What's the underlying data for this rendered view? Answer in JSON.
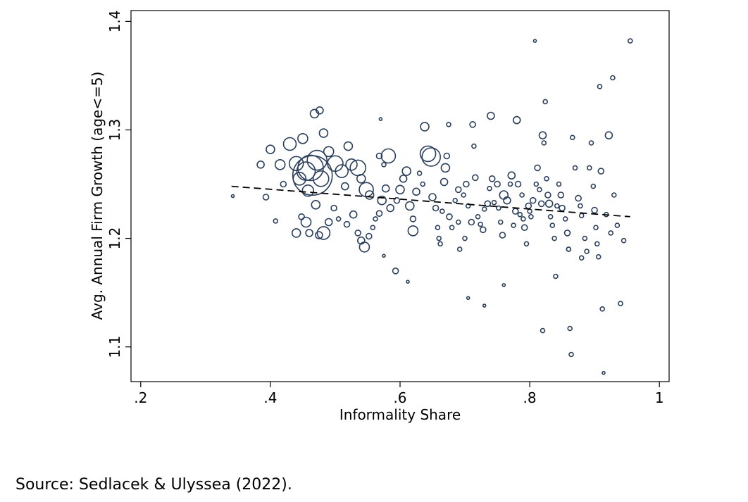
{
  "chart_data": {
    "type": "scatter",
    "title": "",
    "xlabel": "Informality Share",
    "ylabel": "Avg. Annual Firm Growth (age<=5)",
    "xlim": [
      0.185,
      1.015
    ],
    "ylim": [
      1.068,
      1.41
    ],
    "x_ticks": [
      0.2,
      0.4,
      0.6,
      0.8,
      1.0
    ],
    "x_tick_labels": [
      ".2",
      ".4",
      ".6",
      ".8",
      "1"
    ],
    "y_ticks": [
      1.1,
      1.2,
      1.3,
      1.4
    ],
    "y_tick_labels": [
      "1.1",
      "1.2",
      "1.3",
      "1.4"
    ],
    "grid": false,
    "legend": "none",
    "marker": "hollow-circle",
    "marker_color": "#2b3f5c",
    "fit_line": {
      "style": "dashed",
      "color": "#000000",
      "x": [
        0.34,
        0.955
      ],
      "y": [
        1.248,
        1.22
      ]
    },
    "points": [
      [
        0.342,
        1.239,
        2
      ],
      [
        0.385,
        1.268,
        5
      ],
      [
        0.4,
        1.282,
        6
      ],
      [
        0.393,
        1.238,
        4
      ],
      [
        0.415,
        1.268,
        7
      ],
      [
        0.42,
        1.25,
        4
      ],
      [
        0.408,
        1.216,
        3
      ],
      [
        0.43,
        1.287,
        9
      ],
      [
        0.44,
        1.269,
        10
      ],
      [
        0.445,
        1.255,
        9
      ],
      [
        0.455,
        1.262,
        13
      ],
      [
        0.462,
        1.265,
        18
      ],
      [
        0.465,
        1.258,
        28
      ],
      [
        0.472,
        1.272,
        14
      ],
      [
        0.478,
        1.255,
        11
      ],
      [
        0.458,
        1.244,
        8
      ],
      [
        0.47,
        1.231,
        6
      ],
      [
        0.448,
        1.22,
        4
      ],
      [
        0.44,
        1.205,
        6
      ],
      [
        0.455,
        1.215,
        7
      ],
      [
        0.46,
        1.205,
        5
      ],
      [
        0.475,
        1.203,
        5
      ],
      [
        0.482,
        1.205,
        9
      ],
      [
        0.468,
        1.315,
        6
      ],
      [
        0.476,
        1.318,
        5
      ],
      [
        0.482,
        1.297,
        6
      ],
      [
        0.45,
        1.292,
        7
      ],
      [
        0.49,
        1.28,
        7
      ],
      [
        0.5,
        1.269,
        11
      ],
      [
        0.51,
        1.262,
        9
      ],
      [
        0.52,
        1.285,
        6
      ],
      [
        0.525,
        1.268,
        8
      ],
      [
        0.535,
        1.265,
        11
      ],
      [
        0.54,
        1.255,
        6
      ],
      [
        0.548,
        1.245,
        10
      ],
      [
        0.553,
        1.24,
        6
      ],
      [
        0.515,
        1.248,
        5
      ],
      [
        0.498,
        1.228,
        4
      ],
      [
        0.505,
        1.218,
        3
      ],
      [
        0.49,
        1.215,
        5
      ],
      [
        0.518,
        1.213,
        4
      ],
      [
        0.528,
        1.222,
        5
      ],
      [
        0.535,
        1.205,
        4
      ],
      [
        0.54,
        1.198,
        5
      ],
      [
        0.545,
        1.192,
        7
      ],
      [
        0.552,
        1.202,
        4
      ],
      [
        0.558,
        1.21,
        3
      ],
      [
        0.562,
        1.218,
        3
      ],
      [
        0.568,
        1.223,
        4
      ],
      [
        0.572,
        1.235,
        6
      ],
      [
        0.578,
        1.246,
        5
      ],
      [
        0.582,
        1.276,
        10
      ],
      [
        0.568,
        1.276,
        4
      ],
      [
        0.575,
        1.268,
        3
      ],
      [
        0.57,
        1.31,
        2
      ],
      [
        0.585,
        1.228,
        5
      ],
      [
        0.595,
        1.235,
        4
      ],
      [
        0.6,
        1.245,
        6
      ],
      [
        0.605,
        1.255,
        5
      ],
      [
        0.61,
        1.262,
        6
      ],
      [
        0.615,
        1.23,
        6
      ],
      [
        0.62,
        1.218,
        4
      ],
      [
        0.62,
        1.207,
        7
      ],
      [
        0.625,
        1.243,
        5
      ],
      [
        0.63,
        1.26,
        3
      ],
      [
        0.635,
        1.25,
        3
      ],
      [
        0.638,
        1.303,
        6
      ],
      [
        0.643,
        1.278,
        11
      ],
      [
        0.648,
        1.275,
        13
      ],
      [
        0.65,
        1.238,
        5
      ],
      [
        0.655,
        1.228,
        4
      ],
      [
        0.658,
        1.21,
        3
      ],
      [
        0.66,
        1.2,
        3
      ],
      [
        0.662,
        1.195,
        3
      ],
      [
        0.665,
        1.225,
        3
      ],
      [
        0.668,
        1.252,
        5
      ],
      [
        0.67,
        1.265,
        6
      ],
      [
        0.672,
        1.276,
        4
      ],
      [
        0.675,
        1.305,
        3
      ],
      [
        0.676,
        1.22,
        4
      ],
      [
        0.68,
        1.21,
        3
      ],
      [
        0.685,
        1.235,
        3
      ],
      [
        0.69,
        1.245,
        4
      ],
      [
        0.692,
        1.19,
        3
      ],
      [
        0.593,
        1.17,
        4
      ],
      [
        0.575,
        1.184,
        2
      ],
      [
        0.612,
        1.16,
        2
      ],
      [
        0.698,
        1.24,
        3
      ],
      [
        0.702,
        1.25,
        4
      ],
      [
        0.705,
        1.23,
        3
      ],
      [
        0.71,
        1.215,
        4
      ],
      [
        0.712,
        1.305,
        4
      ],
      [
        0.714,
        1.285,
        3
      ],
      [
        0.716,
        1.256,
        4
      ],
      [
        0.72,
        1.22,
        3
      ],
      [
        0.724,
        1.213,
        3
      ],
      [
        0.728,
        1.208,
        4
      ],
      [
        0.73,
        1.227,
        3
      ],
      [
        0.735,
        1.232,
        4
      ],
      [
        0.738,
        1.246,
        3
      ],
      [
        0.74,
        1.313,
        5
      ],
      [
        0.742,
        1.255,
        4
      ],
      [
        0.745,
        1.233,
        3
      ],
      [
        0.75,
        1.25,
        4
      ],
      [
        0.752,
        1.228,
        3
      ],
      [
        0.755,
        1.215,
        3
      ],
      [
        0.758,
        1.203,
        4
      ],
      [
        0.76,
        1.24,
        6
      ],
      [
        0.765,
        1.235,
        5
      ],
      [
        0.77,
        1.25,
        3
      ],
      [
        0.772,
        1.258,
        5
      ],
      [
        0.775,
        1.212,
        3
      ],
      [
        0.778,
        1.225,
        4
      ],
      [
        0.78,
        1.309,
        5
      ],
      [
        0.782,
        1.25,
        4
      ],
      [
        0.785,
        1.222,
        3
      ],
      [
        0.788,
        1.24,
        3
      ],
      [
        0.79,
        1.218,
        3
      ],
      [
        0.792,
        1.21,
        4
      ],
      [
        0.795,
        1.195,
        3
      ],
      [
        0.798,
        1.23,
        4
      ],
      [
        0.8,
        1.225,
        3
      ],
      [
        0.802,
        1.22,
        3
      ],
      [
        0.805,
        1.235,
        4
      ],
      [
        0.808,
        1.382,
        2
      ],
      [
        0.81,
        1.25,
        3
      ],
      [
        0.812,
        1.265,
        4
      ],
      [
        0.815,
        1.245,
        3
      ],
      [
        0.818,
        1.232,
        4
      ],
      [
        0.82,
        1.295,
        5
      ],
      [
        0.822,
        1.288,
        3
      ],
      [
        0.824,
        1.326,
        3
      ],
      [
        0.826,
        1.255,
        3
      ],
      [
        0.828,
        1.24,
        4
      ],
      [
        0.83,
        1.232,
        5
      ],
      [
        0.832,
        1.22,
        3
      ],
      [
        0.835,
        1.212,
        3
      ],
      [
        0.838,
        1.2,
        3
      ],
      [
        0.84,
        1.165,
        3
      ],
      [
        0.842,
        1.23,
        3
      ],
      [
        0.845,
        1.25,
        3
      ],
      [
        0.848,
        1.24,
        4
      ],
      [
        0.85,
        1.228,
        4
      ],
      [
        0.855,
        1.218,
        3
      ],
      [
        0.858,
        1.205,
        4
      ],
      [
        0.86,
        1.19,
        3
      ],
      [
        0.862,
        1.117,
        3
      ],
      [
        0.864,
        1.093,
        3
      ],
      [
        0.866,
        1.293,
        3
      ],
      [
        0.87,
        1.265,
        3
      ],
      [
        0.875,
        1.237,
        4
      ],
      [
        0.878,
        1.23,
        3
      ],
      [
        0.88,
        1.221,
        3
      ],
      [
        0.885,
        1.2,
        3
      ],
      [
        0.888,
        1.188,
        3
      ],
      [
        0.892,
        1.265,
        3
      ],
      [
        0.895,
        1.288,
        3
      ],
      [
        0.898,
        1.248,
        3
      ],
      [
        0.9,
        1.226,
        4
      ],
      [
        0.902,
        1.21,
        3
      ],
      [
        0.904,
        1.195,
        3
      ],
      [
        0.906,
        1.183,
        3
      ],
      [
        0.908,
        1.34,
        3
      ],
      [
        0.91,
        1.262,
        4
      ],
      [
        0.912,
        1.135,
        3
      ],
      [
        0.914,
        1.076,
        2
      ],
      [
        0.918,
        1.222,
        3
      ],
      [
        0.922,
        1.295,
        5
      ],
      [
        0.925,
        1.205,
        3
      ],
      [
        0.928,
        1.348,
        3
      ],
      [
        0.93,
        1.24,
        3
      ],
      [
        0.935,
        1.212,
        3
      ],
      [
        0.94,
        1.14,
        3
      ],
      [
        0.945,
        1.198,
        3
      ],
      [
        0.955,
        1.382,
        3
      ],
      [
        0.705,
        1.145,
        2
      ],
      [
        0.73,
        1.138,
        2
      ],
      [
        0.76,
        1.157,
        2
      ],
      [
        0.82,
        1.115,
        3
      ],
      [
        0.86,
        1.19,
        3
      ],
      [
        0.88,
        1.182,
        3
      ],
      [
        0.7,
        1.2,
        3
      ],
      [
        0.69,
        1.215,
        3
      ]
    ]
  },
  "footer": {
    "source": "Source: Sedlacek & Ulyssea (2022)."
  }
}
